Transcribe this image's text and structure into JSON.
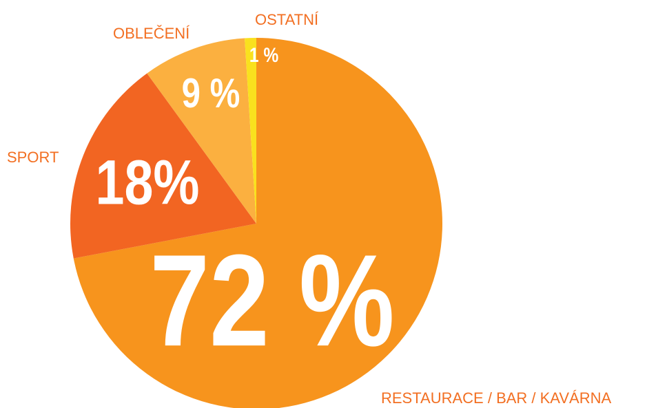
{
  "chart_data": {
    "type": "pie",
    "categories": [
      "RESTAURACE / BAR / KAVÁRNA",
      "SPORT",
      "OBLEČENÍ",
      "OSTATNÍ"
    ],
    "values": [
      72,
      18,
      9,
      1
    ],
    "value_labels": [
      "72 %",
      "18%",
      "9 %",
      "1 %"
    ],
    "colors": [
      "#f7941d",
      "#f26522",
      "#fbb040",
      "#f9e11e"
    ]
  }
}
